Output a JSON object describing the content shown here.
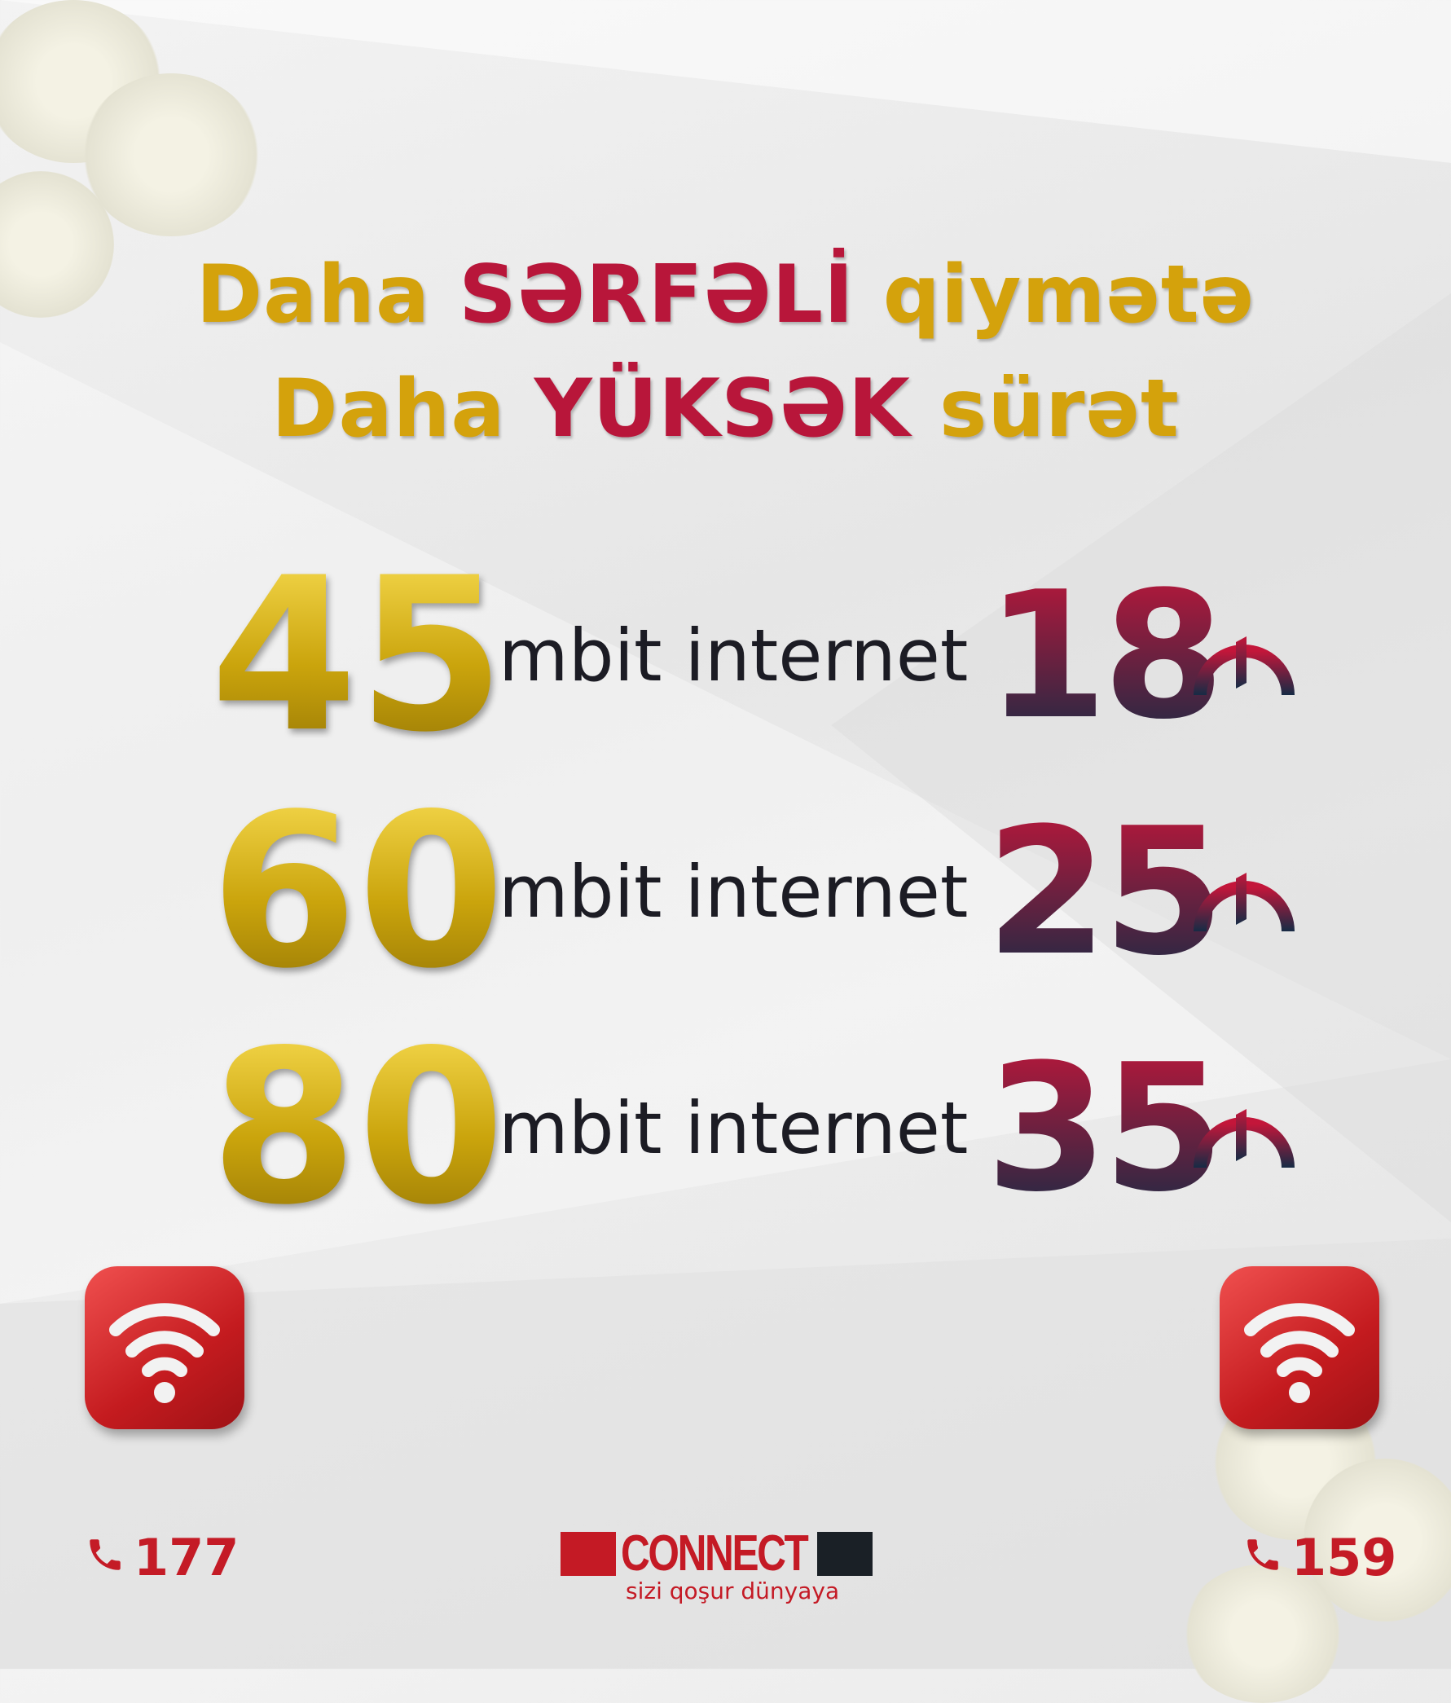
{
  "headline": {
    "line1": {
      "prefix": "Daha",
      "emphasis": "SƏRFƏLİ",
      "suffix": "qiymətə"
    },
    "line2": {
      "prefix": "Daha",
      "emphasis": "YÜKSƏK",
      "suffix": "sürət"
    }
  },
  "plans": [
    {
      "speed": "45",
      "label": "mbit internet",
      "price": "18",
      "currency_icon": "manat-icon"
    },
    {
      "speed": "60",
      "label": "mbit internet",
      "price": "25",
      "currency_icon": "manat-icon"
    },
    {
      "speed": "80",
      "label": "mbit internet",
      "price": "35",
      "currency_icon": "manat-icon"
    }
  ],
  "contacts": {
    "left": "177",
    "right": "159"
  },
  "logo": {
    "name": "CONNECT",
    "tagline": "sizi qoşur dünyaya"
  },
  "colors": {
    "gold": "#d4a20c",
    "crimson": "#b8163a",
    "navy": "#162b45",
    "brand_red": "#c41a25"
  }
}
